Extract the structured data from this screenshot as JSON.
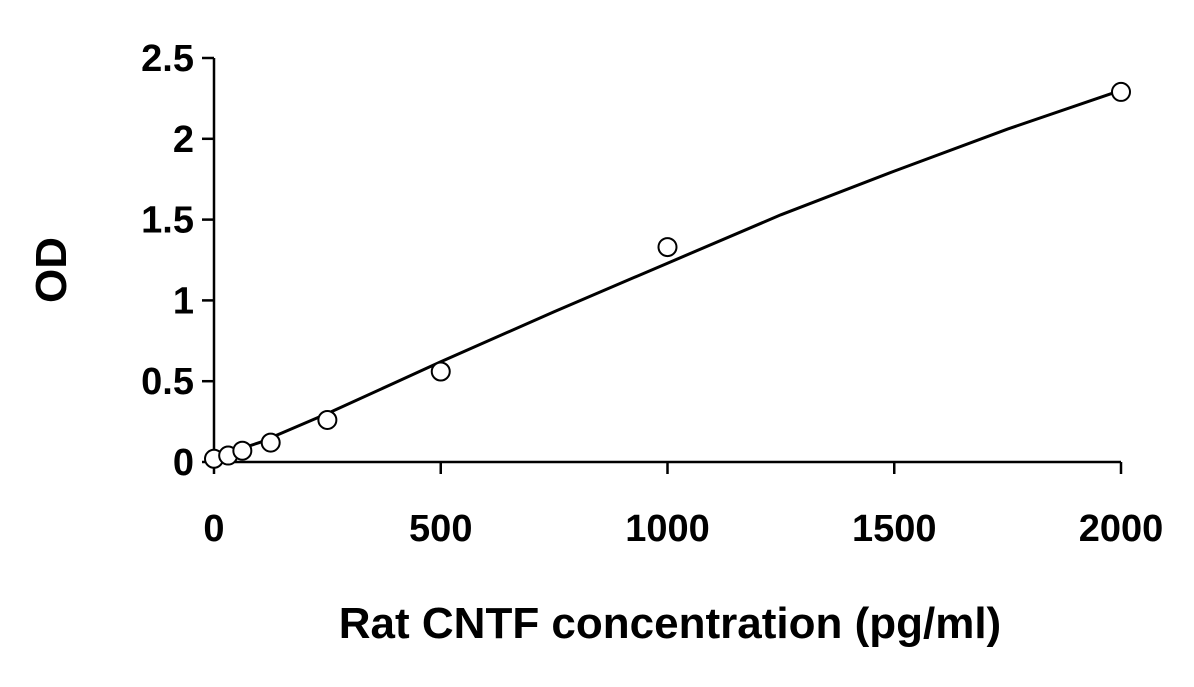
{
  "chart_data": {
    "type": "scatter",
    "title": "",
    "xlabel": "Rat CNTF concentration (pg/ml)",
    "ylabel": "OD",
    "xlim": [
      0,
      2000
    ],
    "ylim": [
      0,
      2.5
    ],
    "x_ticks": [
      0,
      500,
      1000,
      1500,
      2000
    ],
    "x_tick_labels": [
      "0",
      "500",
      "1000",
      "1500",
      "2000"
    ],
    "y_ticks": [
      0,
      0.5,
      1,
      1.5,
      2,
      2.5
    ],
    "y_tick_labels": [
      "0",
      "0.5",
      "1",
      "1.5",
      "2",
      "2.5"
    ],
    "grid": false,
    "legend": "none",
    "marker": "open-circle",
    "colors": {
      "line": "#000000",
      "marker_fill": "#ffffff",
      "marker_edge": "#000000"
    },
    "series": [
      {
        "x": [
          0,
          31.25,
          62.5,
          125,
          250,
          500,
          1000,
          2000
        ],
        "y": [
          0.02,
          0.04,
          0.07,
          0.12,
          0.26,
          0.56,
          1.33,
          2.29
        ]
      }
    ],
    "fit_curve": {
      "x": [
        0,
        100,
        250,
        500,
        750,
        1000,
        1250,
        1500,
        1750,
        2000
      ],
      "y": [
        0.03,
        0.12,
        0.3,
        0.62,
        0.93,
        1.23,
        1.53,
        1.8,
        2.06,
        2.3
      ]
    }
  }
}
